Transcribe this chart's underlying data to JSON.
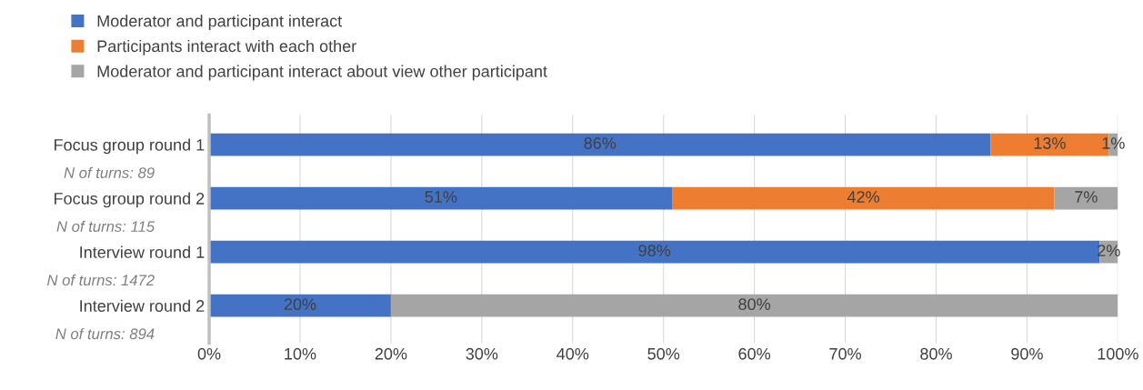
{
  "chart_data": {
    "type": "bar",
    "orientation": "horizontal",
    "stacked": true,
    "categories": [
      "Focus group round 1",
      "Focus group round 2",
      "Interview round 1",
      "Interview round 2"
    ],
    "series": [
      {
        "name": "Moderator and participant interact",
        "color": "#4472c4",
        "values": [
          86,
          51,
          98,
          20
        ],
        "value_labels": [
          "86%",
          "51%",
          "98%",
          "20%"
        ]
      },
      {
        "name": "Participants interact with each other",
        "color": "#ed7d31",
        "values": [
          13,
          42,
          0,
          0
        ],
        "value_labels": [
          "13%",
          "42%",
          null,
          null
        ]
      },
      {
        "name": "Moderator and participant interact about view other participant",
        "color": "#a5a5a5",
        "values": [
          1,
          7,
          2,
          80
        ],
        "value_labels": [
          "1%",
          "7%",
          "2%",
          "80%"
        ]
      }
    ],
    "xlim": [
      0,
      100
    ],
    "xticks": [
      {
        "value": 0,
        "label": "0%"
      },
      {
        "value": 10,
        "label": "10%"
      },
      {
        "value": 20,
        "label": "20%"
      },
      {
        "value": 30,
        "label": "30%"
      },
      {
        "value": 40,
        "label": "40%"
      },
      {
        "value": 50,
        "label": "50%"
      },
      {
        "value": 60,
        "label": "60%"
      },
      {
        "value": 70,
        "label": "70%"
      },
      {
        "value": 80,
        "label": "80%"
      },
      {
        "value": 90,
        "label": "90%"
      },
      {
        "value": 100,
        "label": "100%"
      }
    ],
    "grid": "x",
    "legend": "top",
    "annotations": [
      "N of turns: 89",
      "N of turns: 115",
      "N of turns: 1472",
      "N of turns: 894"
    ]
  }
}
